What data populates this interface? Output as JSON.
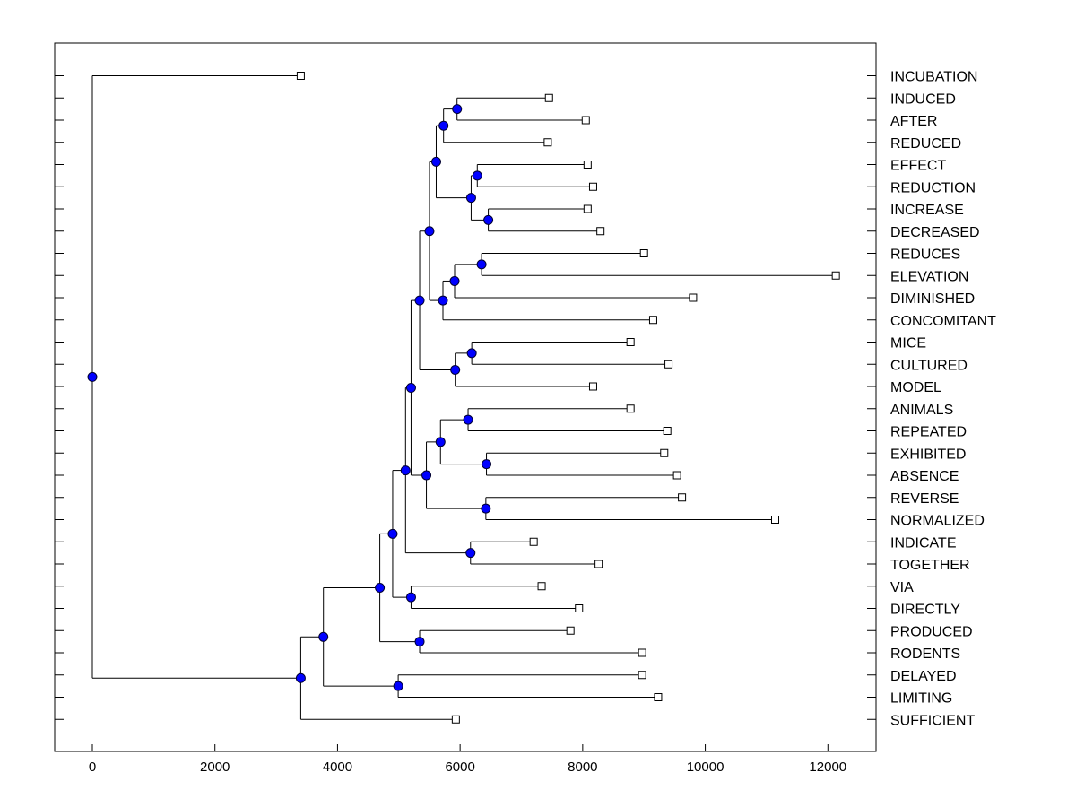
{
  "chart_data": {
    "type": "dendrogram",
    "title": "",
    "xlabel": "",
    "ylabel": "",
    "xlim": [
      -600,
      12700
    ],
    "x_ticks": [
      0,
      2000,
      4000,
      6000,
      8000,
      10000,
      12000
    ],
    "grid": false,
    "leaves": [
      "INCUBATION",
      "INDUCED",
      "AFTER",
      "REDUCED",
      "EFFECT",
      "REDUCTION",
      "INCREASE",
      "DECREASED",
      "REDUCES",
      "ELEVATION",
      "DIMINISHED",
      "CONCOMITANT",
      "MICE",
      "CULTURED",
      "MODEL",
      "ANIMALS",
      "REPEATED",
      "EXHIBITED",
      "ABSENCE",
      "REVERSE",
      "NORMALIZED",
      "INDICATE",
      "TOGETHER",
      "VIA",
      "DIRECTLY",
      "PRODUCED",
      "RODENTS",
      "DELAYED",
      "LIMITING",
      "SUFFICIENT"
    ],
    "leaf_values": [
      3400,
      7450,
      8050,
      7430,
      8080,
      8170,
      8080,
      8290,
      9000,
      12130,
      9800,
      9150,
      8780,
      9400,
      8170,
      8780,
      9380,
      9330,
      9540,
      9620,
      11140,
      7200,
      8260,
      7330,
      7940,
      7800,
      8970,
      8970,
      9230,
      5930
    ],
    "merges": [
      {
        "id": "n1",
        "value": 5950,
        "children": [
          "INDUCED",
          "AFTER"
        ]
      },
      {
        "id": "n2",
        "value": 5730,
        "children": [
          "n1",
          "REDUCED"
        ]
      },
      {
        "id": "n3",
        "value": 6280,
        "children": [
          "EFFECT",
          "REDUCTION"
        ]
      },
      {
        "id": "n4",
        "value": 6460,
        "children": [
          "INCREASE",
          "DECREASED"
        ]
      },
      {
        "id": "n5",
        "value": 6180,
        "children": [
          "n3",
          "n4"
        ]
      },
      {
        "id": "n6",
        "value": 5610,
        "children": [
          "n2",
          "n5"
        ]
      },
      {
        "id": "n7",
        "value": 6350,
        "children": [
          "REDUCES",
          "ELEVATION"
        ]
      },
      {
        "id": "n8",
        "value": 5910,
        "children": [
          "n7",
          "DIMINISHED"
        ]
      },
      {
        "id": "n9",
        "value": 5720,
        "children": [
          "n8",
          "CONCOMITANT"
        ]
      },
      {
        "id": "n10",
        "value": 5500,
        "children": [
          "n6",
          "n9"
        ]
      },
      {
        "id": "n11",
        "value": 6190,
        "children": [
          "MICE",
          "CULTURED"
        ]
      },
      {
        "id": "n12",
        "value": 5920,
        "children": [
          "n11",
          "MODEL"
        ]
      },
      {
        "id": "n13",
        "value": 5340,
        "children": [
          "n10",
          "n12"
        ]
      },
      {
        "id": "n14",
        "value": 6130,
        "children": [
          "ANIMALS",
          "REPEATED"
        ]
      },
      {
        "id": "n15",
        "value": 6430,
        "children": [
          "EXHIBITED",
          "ABSENCE"
        ]
      },
      {
        "id": "n16",
        "value": 5680,
        "children": [
          "n14",
          "n15"
        ]
      },
      {
        "id": "n17",
        "value": 6420,
        "children": [
          "REVERSE",
          "NORMALIZED"
        ]
      },
      {
        "id": "n18",
        "value": 5450,
        "children": [
          "n16",
          "n17"
        ]
      },
      {
        "id": "n19",
        "value": 5200,
        "children": [
          "n13",
          "n18"
        ]
      },
      {
        "id": "n20",
        "value": 6170,
        "children": [
          "INDICATE",
          "TOGETHER"
        ]
      },
      {
        "id": "n21",
        "value": 5110,
        "children": [
          "n19",
          "n20"
        ]
      },
      {
        "id": "n22",
        "value": 5200,
        "children": [
          "VIA",
          "DIRECTLY"
        ]
      },
      {
        "id": "n23",
        "value": 4900,
        "children": [
          "n21",
          "n22"
        ]
      },
      {
        "id": "n24",
        "value": 5340,
        "children": [
          "PRODUCED",
          "RODENTS"
        ]
      },
      {
        "id": "n25",
        "value": 4690,
        "children": [
          "n23",
          "n24"
        ]
      },
      {
        "id": "n26",
        "value": 4990,
        "children": [
          "DELAYED",
          "LIMITING"
        ]
      },
      {
        "id": "n27",
        "value": 3770,
        "children": [
          "n25",
          "n26"
        ]
      },
      {
        "id": "n28",
        "value": 3400,
        "children": [
          "n27",
          "SUFFICIENT"
        ]
      },
      {
        "id": "n29",
        "value": 0,
        "children": [
          "INCUBATION",
          "n28"
        ]
      }
    ],
    "colors": {
      "node": "#0000ff",
      "line": "#000000",
      "leaf_fill": "#ffffff"
    }
  }
}
